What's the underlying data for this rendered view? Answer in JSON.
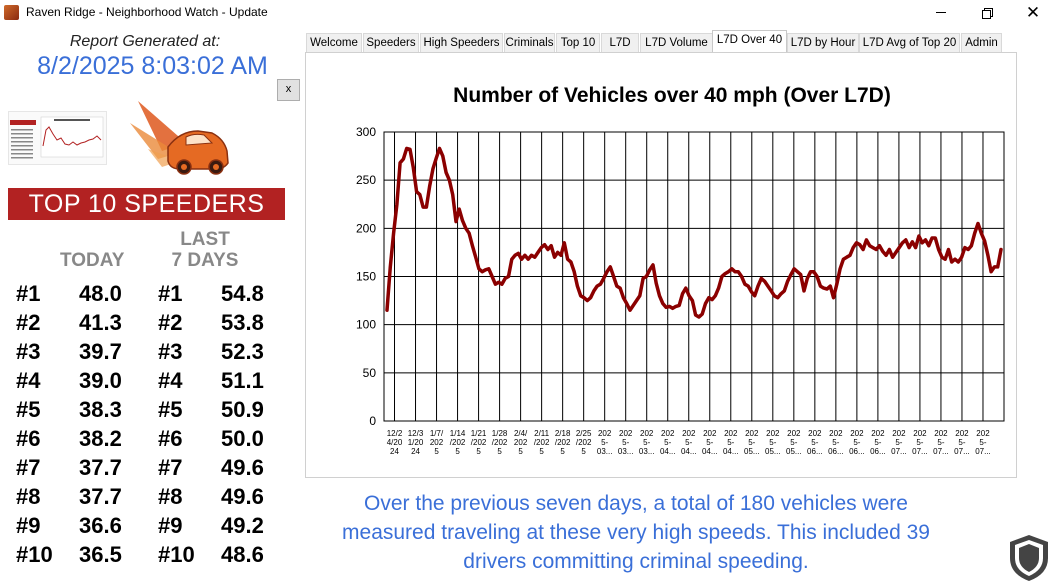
{
  "window": {
    "title": "Raven Ridge - Neighborhood Watch - Update"
  },
  "report": {
    "generated_label": "Report Generated at:",
    "generated_value": "8/2/2025 8:03:02 AM",
    "close_label": "x"
  },
  "speeders": {
    "banner": "TOP 10 SPEEDERS",
    "today_header": "TODAY",
    "last_header_line1": "LAST",
    "last_header_line2": "7 DAYS",
    "rows": [
      {
        "rank_today": "#1",
        "today": "48.0",
        "rank_last": "#1",
        "last": "54.8"
      },
      {
        "rank_today": "#2",
        "today": "41.3",
        "rank_last": "#2",
        "last": "53.8"
      },
      {
        "rank_today": "#3",
        "today": "39.7",
        "rank_last": "#3",
        "last": "52.3"
      },
      {
        "rank_today": "#4",
        "today": "39.0",
        "rank_last": "#4",
        "last": "51.1"
      },
      {
        "rank_today": "#5",
        "today": "38.3",
        "rank_last": "#5",
        "last": "50.9"
      },
      {
        "rank_today": "#6",
        "today": "38.2",
        "rank_last": "#6",
        "last": "50.0"
      },
      {
        "rank_today": "#7",
        "today": "37.7",
        "rank_last": "#7",
        "last": "49.6"
      },
      {
        "rank_today": "#8",
        "today": "37.7",
        "rank_last": "#8",
        "last": "49.6"
      },
      {
        "rank_today": "#9",
        "today": "36.6",
        "rank_last": "#9",
        "last": "49.2"
      },
      {
        "rank_today": "#10",
        "today": "36.5",
        "rank_last": "#10",
        "last": "48.6"
      }
    ]
  },
  "tabs": [
    {
      "label": "Welcome",
      "active": false
    },
    {
      "label": "Speeders",
      "active": false
    },
    {
      "label": "High Speeders",
      "active": false
    },
    {
      "label": "Criminals",
      "active": false
    },
    {
      "label": "Top 10",
      "active": false
    },
    {
      "label": "L7D",
      "active": false
    },
    {
      "label": "L7D Volume",
      "active": false
    },
    {
      "label": "L7D Over 40",
      "active": true
    },
    {
      "label": "L7D by Hour",
      "active": false
    },
    {
      "label": "L7D Avg of Top 20",
      "active": false
    },
    {
      "label": "Admin",
      "active": false
    }
  ],
  "summary": {
    "line1": "Over the previous seven days, a total of 180 vehicles were",
    "line2": "measured traveling at these very high speeds. This included 39",
    "line3": "drivers committing criminal speeding."
  },
  "colors": {
    "accent_blue": "#3a6fd8",
    "banner_red": "#b22222",
    "line_color": "#8b0000"
  },
  "icons": {
    "app": "car-app-icon",
    "logo": "speeding-car-logo",
    "thumbnail": "chart-thumbnail-icon",
    "badge": "shield-icon"
  },
  "chart_data": {
    "type": "line",
    "title": "Number of Vehicles over 40 mph (Over L7D)",
    "xlabel": "",
    "ylabel": "",
    "ylim": [
      0,
      300
    ],
    "yticks": [
      0,
      50,
      100,
      150,
      200,
      250,
      300
    ],
    "grid": true,
    "x_tick_labels": [
      [
        "12/2",
        "4/20",
        "24"
      ],
      [
        "12/3",
        "1/20",
        "24"
      ],
      [
        "1/7/",
        "202",
        "5"
      ],
      [
        "1/14",
        "/202",
        "5"
      ],
      [
        "1/21",
        "/202",
        "5"
      ],
      [
        "1/28",
        "/202",
        "5"
      ],
      [
        "2/4/",
        "202",
        "5"
      ],
      [
        "2/11",
        "/202",
        "5"
      ],
      [
        "2/18",
        "/202",
        "5"
      ],
      [
        "2/25",
        "/202",
        "5"
      ],
      [
        "202",
        "5-",
        "03..."
      ],
      [
        "202",
        "5-",
        "03..."
      ],
      [
        "202",
        "5-",
        "03..."
      ],
      [
        "202",
        "5-",
        "04..."
      ],
      [
        "202",
        "5-",
        "04..."
      ],
      [
        "202",
        "5-",
        "04..."
      ],
      [
        "202",
        "5-",
        "04..."
      ],
      [
        "202",
        "5-",
        "05..."
      ],
      [
        "202",
        "5-",
        "05..."
      ],
      [
        "202",
        "5-",
        "05..."
      ],
      [
        "202",
        "5-",
        "06..."
      ],
      [
        "202",
        "5-",
        "06..."
      ],
      [
        "202",
        "5-",
        "06..."
      ],
      [
        "202",
        "5-",
        "06..."
      ],
      [
        "202",
        "5-",
        "07..."
      ],
      [
        "202",
        "5-",
        "07..."
      ],
      [
        "202",
        "5-",
        "07..."
      ],
      [
        "202",
        "5-",
        "07..."
      ],
      [
        "202",
        "5-",
        "07..."
      ]
    ],
    "series": [
      {
        "values": [
          115,
          160,
          195,
          225,
          268,
          272,
          283,
          282,
          263,
          238,
          235,
          222,
          222,
          244,
          262,
          273,
          283,
          275,
          258,
          250,
          235,
          207,
          220,
          208,
          200,
          195,
          182,
          170,
          158,
          155,
          157,
          158,
          150,
          142,
          144,
          142,
          148,
          150,
          168,
          172,
          174,
          168,
          172,
          168,
          172,
          170,
          175,
          180,
          183,
          178,
          182,
          170,
          175,
          172,
          185,
          168,
          165,
          155,
          140,
          130,
          128,
          125,
          128,
          135,
          140,
          142,
          148,
          155,
          160,
          150,
          140,
          138,
          128,
          122,
          115,
          120,
          125,
          130,
          148,
          150,
          157,
          162,
          143,
          130,
          122,
          118,
          119,
          117,
          119,
          120,
          132,
          138,
          130,
          125,
          110,
          108,
          111,
          122,
          128,
          126,
          130,
          138,
          150,
          153,
          155,
          158,
          155,
          155,
          150,
          142,
          140,
          134,
          130,
          140,
          148,
          145,
          140,
          135,
          130,
          128,
          132,
          135,
          145,
          152,
          158,
          155,
          152,
          135,
          148,
          155,
          155,
          150,
          140,
          138,
          137,
          140,
          128,
          142,
          158,
          168,
          170,
          172,
          180,
          185,
          183,
          178,
          188,
          182,
          180,
          178,
          182,
          176,
          172,
          178,
          170,
          175,
          180,
          185,
          188,
          180,
          186,
          180,
          192,
          185,
          188,
          182,
          190,
          190,
          178,
          170,
          168,
          178,
          165,
          168,
          165,
          170,
          180,
          178,
          182,
          195,
          205,
          195,
          187,
          172,
          155,
          160,
          160,
          178
        ]
      }
    ]
  }
}
